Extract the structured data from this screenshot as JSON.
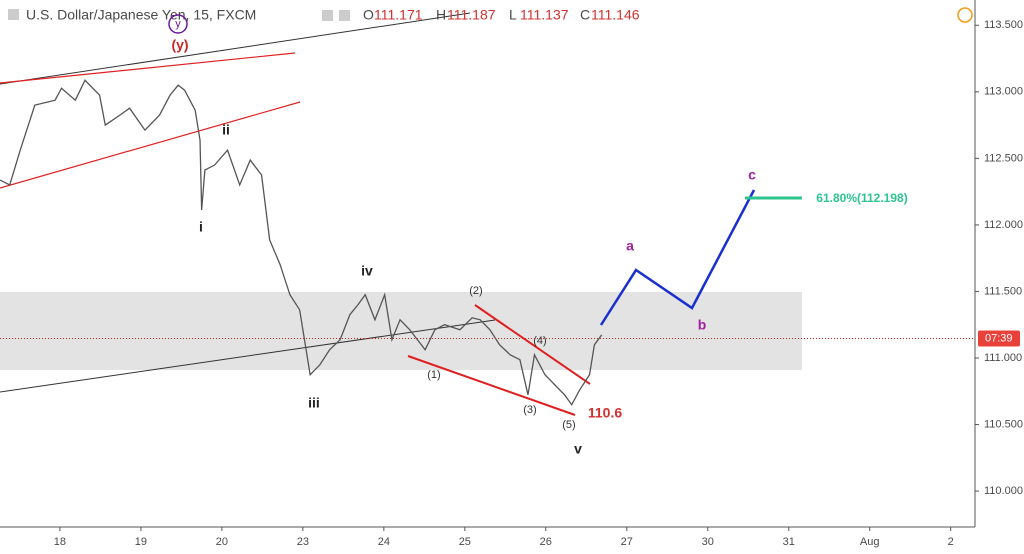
{
  "header": {
    "symbol": "U.S. Dollar/Japanese Yen, 15, FXCM",
    "open_label": "O",
    "open": "111.171",
    "high_label": "H",
    "high": "111.187",
    "low_label": "L",
    "low": "111.137",
    "close_label": "C",
    "close": "111.146"
  },
  "chart_data": {
    "type": "line",
    "color": "#555555",
    "x": [
      -0.74,
      -0.62,
      -0.49,
      -0.31,
      -0.06,
      0.02,
      0.19,
      0.31,
      0.49,
      0.56,
      0.74,
      0.86,
      1.05,
      1.23,
      1.36,
      1.46,
      1.54,
      1.67,
      1.73,
      1.75,
      1.79,
      1.91,
      2.07,
      2.22,
      2.35,
      2.49,
      2.59,
      2.72,
      2.84,
      2.96,
      3.02,
      3.09,
      3.21,
      3.33,
      3.46,
      3.58,
      3.68,
      3.77,
      3.89,
      4.01,
      4.1,
      4.2,
      4.32,
      4.51,
      4.63,
      4.75,
      4.94,
      5.09,
      5.19,
      5.31,
      5.43,
      5.56,
      5.68,
      5.78,
      5.86,
      5.99,
      6.11,
      6.23,
      6.32,
      6.42,
      6.54,
      6.6,
      6.69
    ],
    "values": [
      112.337,
      112.3,
      112.562,
      112.9,
      112.937,
      113.027,
      112.937,
      113.087,
      112.975,
      112.75,
      112.825,
      112.877,
      112.712,
      112.825,
      112.975,
      113.05,
      113.012,
      112.862,
      112.637,
      112.112,
      112.412,
      112.45,
      112.562,
      112.3,
      112.487,
      112.375,
      111.887,
      111.7,
      111.475,
      111.362,
      111.137,
      110.874,
      110.949,
      111.062,
      111.137,
      111.325,
      111.4,
      111.475,
      111.287,
      111.475,
      111.137,
      111.287,
      111.212,
      111.062,
      111.212,
      111.25,
      111.212,
      111.302,
      111.287,
      111.212,
      111.099,
      111.024,
      110.987,
      110.724,
      111.024,
      110.874,
      110.799,
      110.724,
      110.649,
      110.762,
      110.874,
      111.099,
      111.174
    ],
    "xlim": [
      -0.74,
      11.3
    ],
    "ylim": [
      109.73,
      113.69
    ],
    "xticks": [
      {
        "value": 0,
        "label": "18"
      },
      {
        "value": 1,
        "label": "19"
      },
      {
        "value": 2,
        "label": "20"
      },
      {
        "value": 3,
        "label": "23"
      },
      {
        "value": 4,
        "label": "24"
      },
      {
        "value": 5,
        "label": "25"
      },
      {
        "value": 6,
        "label": "26"
      },
      {
        "value": 7,
        "label": "27"
      },
      {
        "value": 8,
        "label": "30"
      },
      {
        "value": 9,
        "label": "31"
      },
      {
        "value": 10,
        "label": "Aug"
      },
      {
        "value": 11,
        "label": "2"
      }
    ],
    "yticks": [
      {
        "value": 110,
        "label": "110.000"
      },
      {
        "value": 110.5,
        "label": "110.500"
      },
      {
        "value": 111,
        "label": "111.000"
      },
      {
        "value": 111.5,
        "label": "111.500"
      },
      {
        "value": 112,
        "label": "112.000"
      },
      {
        "value": 112.5,
        "label": "112.500"
      },
      {
        "value": 113,
        "label": "113.000"
      },
      {
        "value": 113.5,
        "label": "113.500"
      }
    ],
    "last_price": 111.146,
    "last_label": "07:39"
  },
  "annotations": [
    "y",
    "(y)",
    "i",
    "ii",
    "iii",
    "iv",
    "v",
    "(1)",
    "(2)",
    "(3)",
    "(4)",
    "(5)",
    "110.6",
    "a",
    "b",
    "c",
    "61.80%(112.198)"
  ]
}
